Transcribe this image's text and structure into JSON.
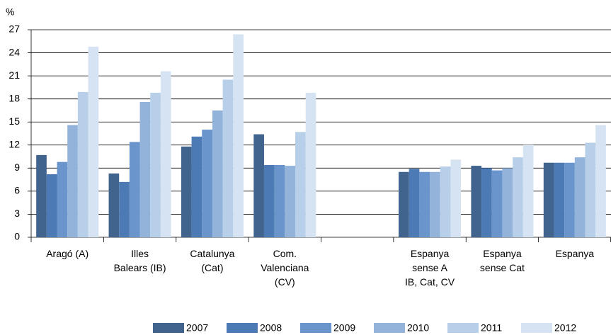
{
  "chart_data": {
    "type": "bar",
    "y_label": "%",
    "categories": [
      "Aragó (A)",
      "Illes\nBalears (IB)",
      "Catalunya\n(Cat)",
      "Com.\nValenciana\n(CV)",
      null,
      "Espanya\nsense A\nIB, Cat, CV",
      "Espanya\nsense Cat",
      "Espanya"
    ],
    "series": [
      {
        "name": "2007",
        "color": "#41648f",
        "values": [
          10.7,
          8.3,
          11.8,
          13.4,
          null,
          8.5,
          9.3,
          9.7
        ]
      },
      {
        "name": "2008",
        "color": "#4b7ab4",
        "values": [
          8.2,
          7.2,
          13.1,
          9.4,
          null,
          8.9,
          9.0,
          9.7
        ]
      },
      {
        "name": "2009",
        "color": "#6a95cc",
        "values": [
          9.8,
          12.4,
          14.0,
          9.4,
          null,
          8.5,
          8.7,
          9.7
        ]
      },
      {
        "name": "2010",
        "color": "#93b3db",
        "values": [
          14.6,
          17.6,
          16.5,
          9.3,
          null,
          8.5,
          9.0,
          10.4
        ]
      },
      {
        "name": "2011",
        "color": "#b8cfe9",
        "values": [
          18.9,
          18.8,
          20.5,
          13.7,
          null,
          9.2,
          10.4,
          12.3
        ]
      },
      {
        "name": "2012",
        "color": "#d6e3f2",
        "values": [
          24.8,
          21.6,
          26.4,
          18.8,
          null,
          10.1,
          12.0,
          14.6
        ]
      }
    ],
    "ylim": [
      0,
      27
    ],
    "yticks": [
      0,
      3,
      6,
      9,
      12,
      15,
      18,
      21,
      24,
      27
    ],
    "grid": true
  }
}
